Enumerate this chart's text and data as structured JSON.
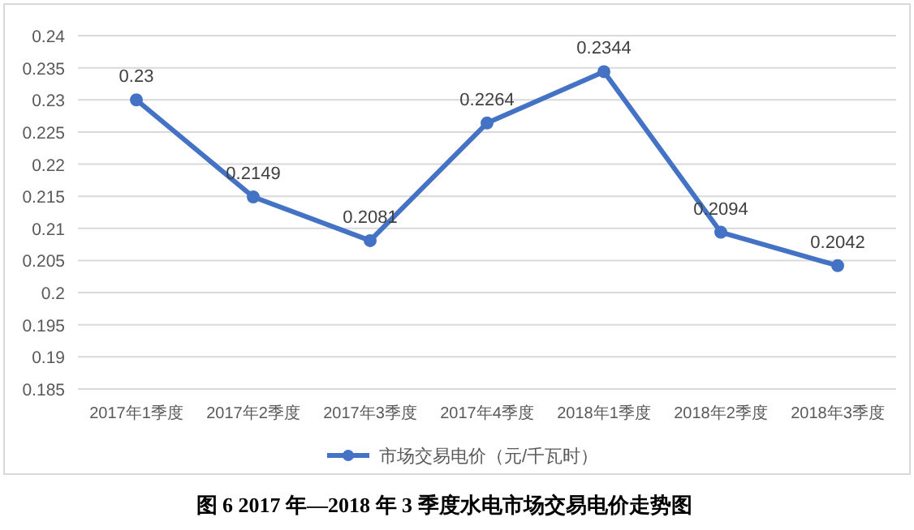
{
  "chart_data": {
    "type": "line",
    "title": "图 6 2017 年—2018 年 3 季度水电市场交易电价走势图",
    "categories": [
      "2017年1季度",
      "2017年2季度",
      "2017年3季度",
      "2017年4季度",
      "2018年1季度",
      "2018年2季度",
      "2018年3季度"
    ],
    "series": [
      {
        "name": "市场交易电价（元/千瓦时）",
        "color": "#4472c4",
        "values": [
          0.23,
          0.2149,
          0.2081,
          0.2264,
          0.2344,
          0.2094,
          0.2042
        ]
      }
    ],
    "ylim": [
      0.185,
      0.24
    ],
    "yticks": [
      0.185,
      0.19,
      0.195,
      0.2,
      0.205,
      0.21,
      0.215,
      0.22,
      0.225,
      0.23,
      0.235,
      0.24
    ],
    "grid": "y",
    "legend": "bottom",
    "marker": "circle",
    "line_style": "solid",
    "data_labels": true
  }
}
